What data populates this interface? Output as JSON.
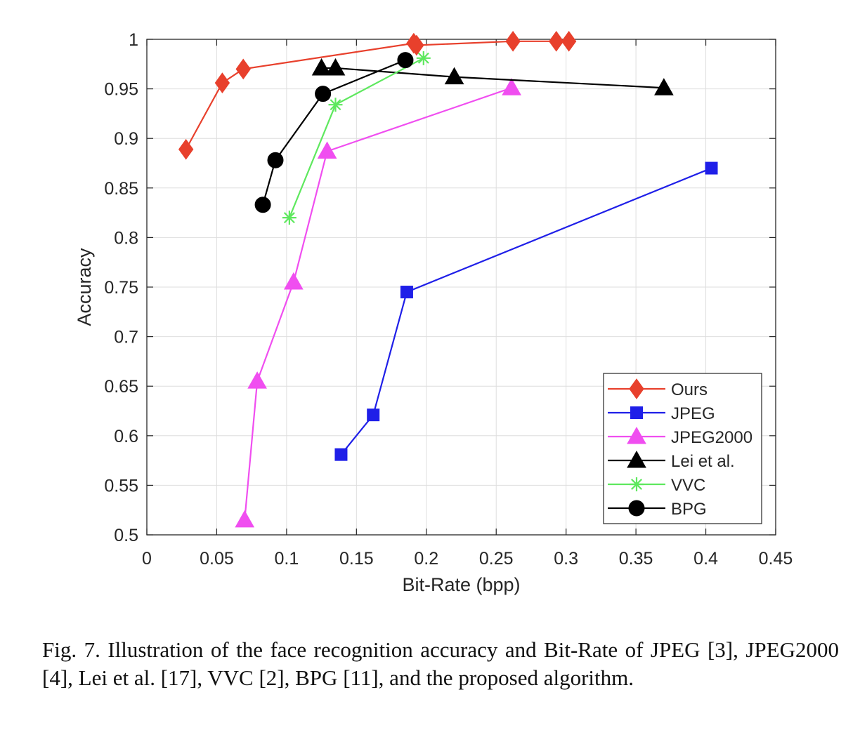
{
  "chart_data": {
    "type": "line",
    "xlabel": "Bit-Rate (bpp)",
    "ylabel": "Accuracy",
    "xlim": [
      0,
      0.45
    ],
    "ylim": [
      0.5,
      1
    ],
    "xticks": [
      "0",
      "0.05",
      "0.1",
      "0.15",
      "0.2",
      "0.25",
      "0.3",
      "0.35",
      "0.4",
      "0.45"
    ],
    "yticks": [
      "0.5",
      "0.55",
      "0.6",
      "0.65",
      "0.7",
      "0.75",
      "0.8",
      "0.85",
      "0.9",
      "0.95",
      "1"
    ],
    "grid": true,
    "legend_position": "bottom-right",
    "series": [
      {
        "name": "Ours",
        "color": "#e8402c",
        "marker": "diamond",
        "x": [
          0.028,
          0.054,
          0.069,
          0.191,
          0.193,
          0.262,
          0.293,
          0.302
        ],
        "y": [
          0.889,
          0.956,
          0.97,
          0.996,
          0.994,
          0.998,
          0.998,
          0.998
        ]
      },
      {
        "name": "JPEG",
        "color": "#1f1fe8",
        "marker": "square",
        "x": [
          0.139,
          0.162,
          0.186,
          0.404
        ],
        "y": [
          0.581,
          0.621,
          0.745,
          0.87
        ]
      },
      {
        "name": "JPEG2000",
        "color": "#f04ef0",
        "marker": "triangle",
        "x": [
          0.07,
          0.079,
          0.105,
          0.129,
          0.261
        ],
        "y": [
          0.515,
          0.655,
          0.755,
          0.887,
          0.951
        ]
      },
      {
        "name": "Lei et al.",
        "color": "#000000",
        "marker": "triangle",
        "x": [
          0.125,
          0.135,
          0.22,
          0.37
        ],
        "y": [
          0.971,
          0.971,
          0.962,
          0.951
        ]
      },
      {
        "name": "VVC",
        "color": "#5ee85e",
        "marker": "asterisk",
        "x": [
          0.102,
          0.135,
          0.198
        ],
        "y": [
          0.82,
          0.934,
          0.981
        ]
      },
      {
        "name": "BPG",
        "color": "#000000",
        "marker": "circle",
        "x": [
          0.083,
          0.092,
          0.126,
          0.185
        ],
        "y": [
          0.833,
          0.878,
          0.945,
          0.979
        ]
      }
    ]
  },
  "caption": "Fig. 7.  Illustration of the face recognition accuracy and Bit-Rate of JPEG [3], JPEG2000 [4], Lei et al. [17], VVC [2], BPG [11], and the proposed algorithm."
}
